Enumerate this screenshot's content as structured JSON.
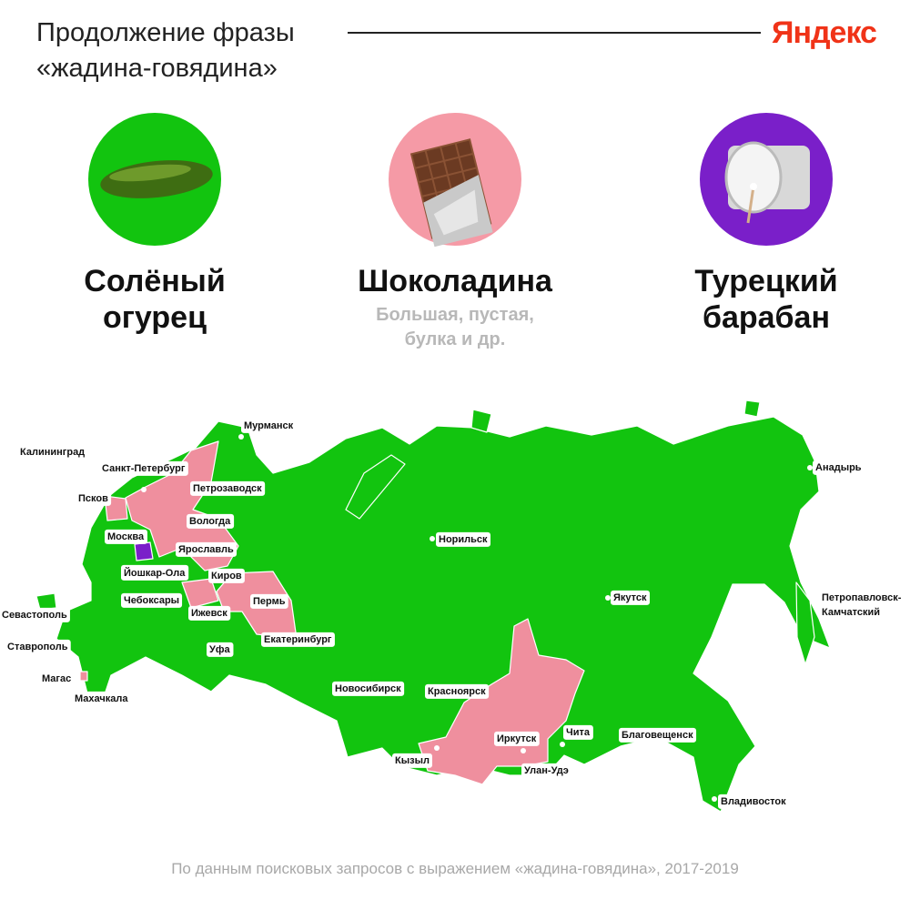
{
  "header": {
    "title_lines": [
      "Продолжение фразы",
      "«жадина-говядина»"
    ],
    "brand": "Яндекс"
  },
  "items": [
    {
      "title_lines": [
        "Солёный",
        "огурец"
      ]
    },
    {
      "title_lines": [
        "Шоколадина"
      ],
      "note_lines": [
        "Большая, пустая,",
        "булка и др."
      ]
    },
    {
      "title_lines": [
        "Турецкий",
        "барабан"
      ]
    }
  ],
  "cities": [
    "Мурманск",
    "Калининград",
    "Санкт-Петербург",
    "Петрозаводск",
    "Псков",
    "Вологда",
    "Москва",
    "Ярославль",
    "Норильск",
    "Анадырь",
    "Йошкар-Ола",
    "Киров",
    "Якутск",
    "Петропавловск-",
    "Камчатский",
    "Чебоксары",
    "Пермь",
    "Севастополь",
    "Ижевск",
    "Екатеринбург",
    "Ставрополь",
    "Уфа",
    "Магас",
    "Новосибирск",
    "Красноярск",
    "Махачкала",
    "Чита",
    "Благовещенск",
    "Иркутск",
    "Кызыл",
    "Улан-Удэ",
    "Владивосток"
  ],
  "footer": "По данным поисковых запросов с выражением «жадина-говядина», 2017-2019"
}
